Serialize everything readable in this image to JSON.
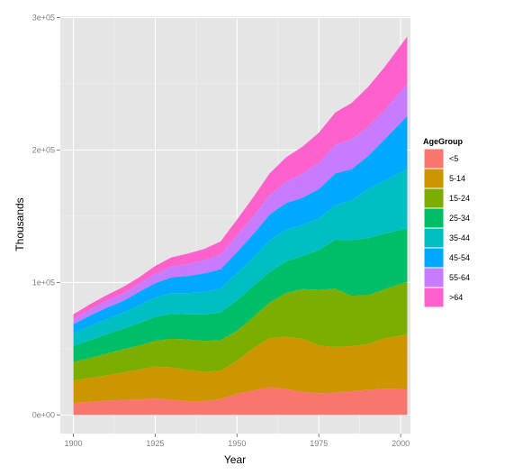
{
  "chart_data": {
    "type": "area",
    "stacked": true,
    "title": "",
    "xlabel": "Year",
    "ylabel": "Thousands",
    "xlim": [
      1896,
      2003
    ],
    "ylim": [
      -14000,
      301000
    ],
    "x_ticks": [
      1900,
      1925,
      1950,
      1975,
      2000
    ],
    "y_ticks": [
      {
        "value": 0,
        "label": "0e+00"
      },
      {
        "value": 100000,
        "label": "1e+05"
      },
      {
        "value": 200000,
        "label": "2e+05"
      },
      {
        "value": 300000,
        "label": "3e+05"
      }
    ],
    "grid": true,
    "legend": {
      "title": "AgeGroup",
      "position": "right"
    },
    "x": [
      1900,
      1905,
      1910,
      1915,
      1920,
      1925,
      1930,
      1935,
      1940,
      1945,
      1950,
      1955,
      1960,
      1965,
      1970,
      1975,
      1980,
      1985,
      1990,
      1995,
      2002
    ],
    "series": [
      {
        "name": "<5",
        "color": "#F8766D",
        "values": [
          9000,
          10000,
          10800,
          11400,
          11800,
          12500,
          11500,
          10500,
          10400,
          12000,
          16000,
          18500,
          21000,
          19500,
          17500,
          16500,
          16800,
          18000,
          18900,
          19800,
          19700
        ]
      },
      {
        "name": "5-14",
        "color": "#CD9600",
        "values": [
          17000,
          18000,
          19000,
          20500,
          22500,
          24000,
          24500,
          23500,
          22000,
          21500,
          25000,
          32000,
          37000,
          39500,
          40000,
          36000,
          34500,
          34000,
          34500,
          38000,
          41000
        ]
      },
      {
        "name": "15-24",
        "color": "#7CAE00",
        "values": [
          14000,
          15000,
          16500,
          17500,
          18000,
          19500,
          21500,
          23000,
          23500,
          23000,
          22500,
          23500,
          27000,
          33000,
          37500,
          42000,
          44000,
          38000,
          37000,
          37000,
          40000
        ]
      },
      {
        "name": "25-34",
        "color": "#00BE67",
        "values": [
          12000,
          13500,
          14500,
          15500,
          17000,
          18000,
          19000,
          19000,
          20000,
          21000,
          23000,
          23500,
          23000,
          24000,
          25000,
          30000,
          37000,
          42000,
          43000,
          42000,
          40000
        ]
      },
      {
        "name": "35-44",
        "color": "#00BFC4",
        "values": [
          9500,
          10500,
          11500,
          12000,
          13500,
          14500,
          15500,
          16000,
          17000,
          18000,
          20500,
          21500,
          24000,
          24000,
          23500,
          24000,
          26000,
          30000,
          37000,
          40000,
          45000
        ]
      },
      {
        "name": "45-54",
        "color": "#00A9FF",
        "values": [
          7000,
          8000,
          8500,
          9000,
          10000,
          11000,
          12000,
          13000,
          14000,
          14500,
          16000,
          17500,
          19500,
          20000,
          20500,
          22000,
          24000,
          23500,
          25000,
          31000,
          40000
        ]
      },
      {
        "name": "55-64",
        "color": "#C77CFF",
        "values": [
          4000,
          4500,
          5000,
          5500,
          6000,
          7000,
          8000,
          9000,
          10000,
          11000,
          12500,
          13500,
          14500,
          16000,
          18000,
          20000,
          21500,
          22500,
          22000,
          22000,
          24000
        ]
      },
      {
        "name": ">64",
        "color": "#FF61CC",
        "values": [
          3500,
          4000,
          4500,
          5000,
          5000,
          6000,
          7000,
          7800,
          8500,
          10000,
          12000,
          14500,
          16500,
          18500,
          20500,
          22500,
          24500,
          27500,
          30000,
          32500,
          36000
        ]
      }
    ]
  }
}
